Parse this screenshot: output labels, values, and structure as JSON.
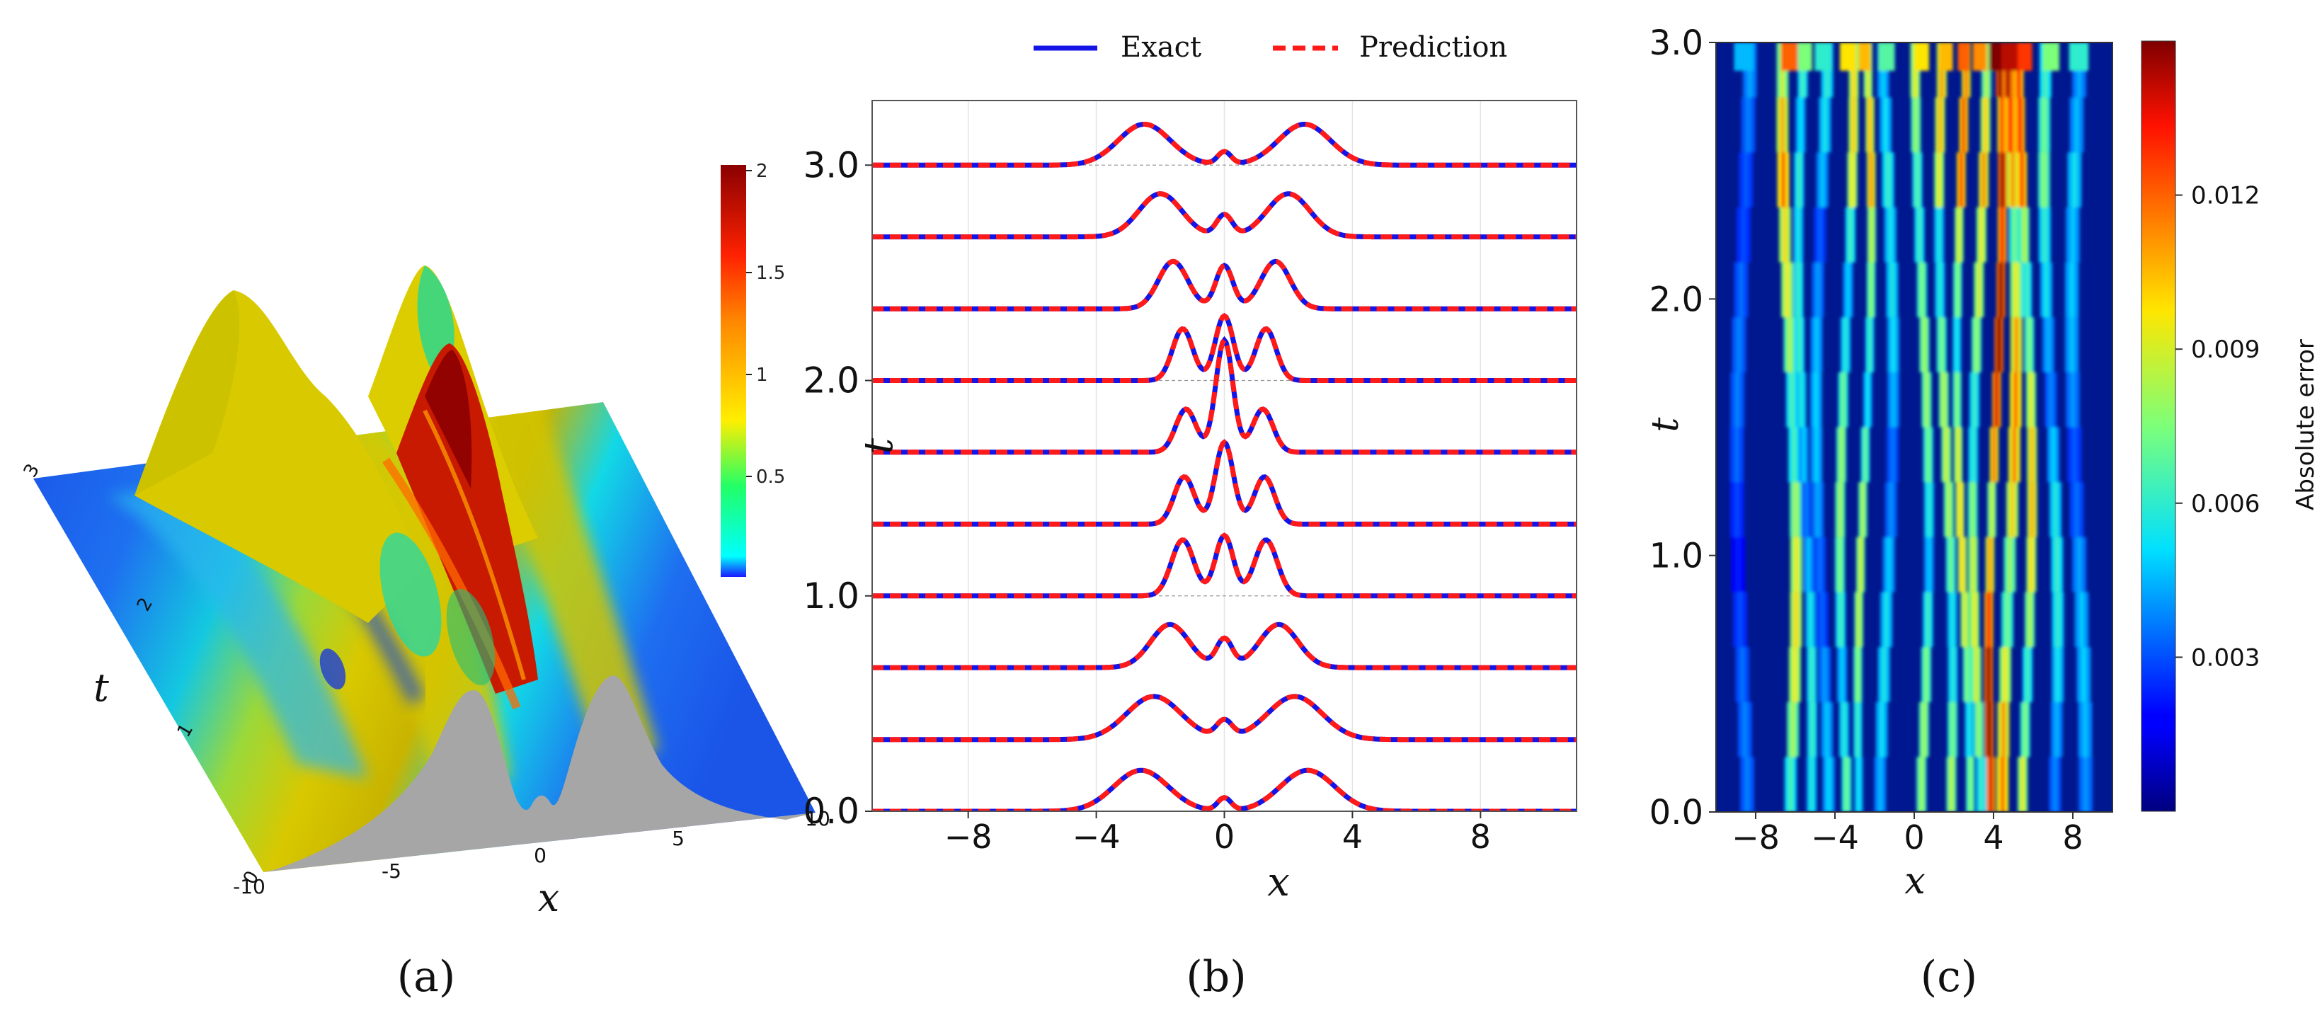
{
  "figure": {
    "panel_labels": [
      "(a)",
      "(b)",
      "(c)"
    ]
  },
  "chart_data": [
    {
      "panel": "(a)",
      "type": "surface3d",
      "xlabel": "x",
      "ylabel": "t",
      "x_ticks": [
        "-10",
        "-5",
        "0",
        "5",
        "10"
      ],
      "t_ticks": [
        "0",
        "1",
        "2",
        "3"
      ],
      "colorbar": {
        "ticks": [
          "0.5",
          "1",
          "1.5",
          "2"
        ],
        "min": 0.05,
        "max": 2
      }
    },
    {
      "panel": "(b)",
      "type": "line",
      "xlabel": "x",
      "ylabel": "t",
      "xlim": [
        -11,
        11
      ],
      "ylim": [
        0,
        3.3
      ],
      "x_ticks": [
        -8,
        -4,
        0,
        4,
        8
      ],
      "x_tick_labels": [
        "−8",
        "−4",
        "0",
        "4",
        "8"
      ],
      "y_ticks": [
        0,
        1,
        2,
        3
      ],
      "y_tick_labels": [
        "0.0",
        "1.0",
        "2.0",
        "3.0"
      ],
      "legend": [
        "Exact",
        "Prediction"
      ],
      "series": [
        {
          "name": "Exact",
          "color": "#1414e6",
          "style": "solid"
        },
        {
          "name": "Prediction",
          "color": "#ff1a1a",
          "style": "dashed"
        }
      ],
      "snapshot_offsets": [
        0.0,
        0.333,
        0.667,
        1.0,
        1.333,
        1.667,
        2.0,
        2.333,
        2.667,
        3.0
      ],
      "snapshots": [
        {
          "t": 0.0,
          "peaks": [
            {
              "x": -2.6,
              "h": 0.19,
              "w": 1.2
            },
            {
              "x": 2.6,
              "h": 0.19,
              "w": 1.2
            },
            {
              "x": 0,
              "h": 0.06,
              "w": 0.3
            }
          ]
        },
        {
          "t": 0.333,
          "peaks": [
            {
              "x": -2.2,
              "h": 0.2,
              "w": 1.2
            },
            {
              "x": 2.2,
              "h": 0.2,
              "w": 1.2
            },
            {
              "x": 0,
              "h": 0.08,
              "w": 0.35
            }
          ]
        },
        {
          "t": 0.667,
          "peaks": [
            {
              "x": -1.7,
              "h": 0.2,
              "w": 0.85
            },
            {
              "x": 1.7,
              "h": 0.2,
              "w": 0.85
            },
            {
              "x": 0,
              "h": 0.13,
              "w": 0.35
            }
          ]
        },
        {
          "t": 1.0,
          "peaks": [
            {
              "x": -1.3,
              "h": 0.26,
              "w": 0.5
            },
            {
              "x": 1.3,
              "h": 0.26,
              "w": 0.5
            },
            {
              "x": 0,
              "h": 0.28,
              "w": 0.4
            }
          ]
        },
        {
          "t": 1.333,
          "peaks": [
            {
              "x": -1.25,
              "h": 0.22,
              "w": 0.45
            },
            {
              "x": 1.25,
              "h": 0.22,
              "w": 0.45
            },
            {
              "x": 0,
              "h": 0.38,
              "w": 0.4
            }
          ]
        },
        {
          "t": 1.667,
          "peaks": [
            {
              "x": -1.2,
              "h": 0.2,
              "w": 0.45
            },
            {
              "x": 1.2,
              "h": 0.2,
              "w": 0.45
            },
            {
              "x": 0,
              "h": 0.52,
              "w": 0.38
            }
          ]
        },
        {
          "t": 2.0,
          "peaks": [
            {
              "x": -1.3,
              "h": 0.24,
              "w": 0.45
            },
            {
              "x": 1.3,
              "h": 0.24,
              "w": 0.45
            },
            {
              "x": 0,
              "h": 0.3,
              "w": 0.4
            }
          ]
        },
        {
          "t": 2.333,
          "peaks": [
            {
              "x": -1.6,
              "h": 0.22,
              "w": 0.65
            },
            {
              "x": 1.6,
              "h": 0.22,
              "w": 0.65
            },
            {
              "x": 0,
              "h": 0.2,
              "w": 0.38
            }
          ]
        },
        {
          "t": 2.667,
          "peaks": [
            {
              "x": -2.0,
              "h": 0.2,
              "w": 0.95
            },
            {
              "x": 2.0,
              "h": 0.2,
              "w": 0.95
            },
            {
              "x": 0,
              "h": 0.1,
              "w": 0.35
            }
          ]
        },
        {
          "t": 3.0,
          "peaks": [
            {
              "x": -2.5,
              "h": 0.19,
              "w": 1.15
            },
            {
              "x": 2.5,
              "h": 0.19,
              "w": 1.15
            },
            {
              "x": 0,
              "h": 0.06,
              "w": 0.3
            }
          ]
        }
      ]
    },
    {
      "panel": "(c)",
      "type": "heatmap",
      "xlabel": "x",
      "ylabel": "t",
      "xlim": [
        -10,
        10
      ],
      "ylim": [
        0,
        3
      ],
      "x_ticks": [
        -8,
        -4,
        0,
        4,
        8
      ],
      "x_tick_labels": [
        "−8",
        "−4",
        "0",
        "4",
        "8"
      ],
      "y_ticks": [
        0,
        1,
        2,
        3
      ],
      "y_tick_labels": [
        "0.0",
        "1.0",
        "2.0",
        "3.0"
      ],
      "colorbar": {
        "label": "Absolute error",
        "min": 0,
        "max": 0.015,
        "ticks": [
          0.003,
          0.006,
          0.009,
          0.012
        ],
        "tick_labels": [
          "0.003",
          "0.006",
          "0.009",
          "0.012"
        ]
      },
      "stripes": [
        {
          "x": -6.3,
          "amp": 0.008,
          "w": 0.3
        },
        {
          "x": -5.5,
          "amp": 0.005,
          "w": 0.25
        },
        {
          "x": -4.6,
          "amp": 0.004,
          "w": 0.3
        },
        {
          "x": -3.4,
          "amp": 0.0065,
          "w": 0.25
        },
        {
          "x": -2.5,
          "amp": 0.007,
          "w": 0.22
        },
        {
          "x": -1.4,
          "amp": 0.0045,
          "w": 0.3
        },
        {
          "x": 0.4,
          "amp": 0.0065,
          "w": 0.25
        },
        {
          "x": 1.6,
          "amp": 0.007,
          "w": 0.25
        },
        {
          "x": 2.5,
          "amp": 0.008,
          "w": 0.22
        },
        {
          "x": 3.3,
          "amp": 0.0075,
          "w": 0.25
        },
        {
          "x": 4.1,
          "amp": 0.012,
          "w": 0.22
        },
        {
          "x": 4.8,
          "amp": 0.0095,
          "w": 0.3
        },
        {
          "x": 5.6,
          "amp": 0.0085,
          "w": 0.25
        },
        {
          "x": 6.9,
          "amp": 0.005,
          "w": 0.3
        },
        {
          "x": 8.3,
          "amp": 0.004,
          "w": 0.35
        },
        {
          "x": -8.6,
          "amp": 0.003,
          "w": 0.35
        }
      ]
    }
  ]
}
